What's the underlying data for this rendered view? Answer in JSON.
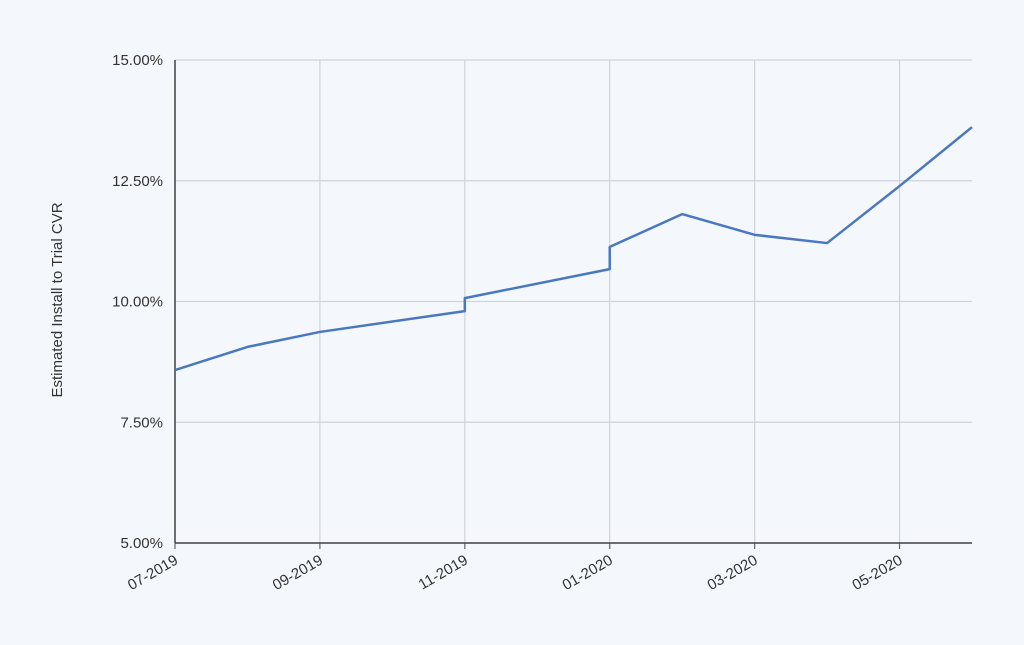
{
  "chart_data": {
    "type": "line",
    "y_label": "Estimated Install to Trial CVR",
    "x": [
      "07-2019",
      "08-2019",
      "09-2019",
      "11-2019",
      "11-2019",
      "01-2020",
      "01-2020",
      "02-2020",
      "03-2020",
      "04-2020",
      "05-2020",
      "06-2020"
    ],
    "values": [
      8.58,
      9.06,
      9.37,
      9.8,
      10.07,
      10.67,
      11.13,
      11.81,
      11.38,
      11.21,
      12.39,
      13.61
    ],
    "color": "#4a78c0",
    "xlim": [
      "07-2019",
      "06-2020"
    ],
    "xticks": [
      "07-2019",
      "09-2019",
      "11-2019",
      "01-2020",
      "03-2020",
      "05-2020"
    ],
    "ylim": [
      5,
      15
    ],
    "yticks": [
      {
        "value": 5,
        "label": "5.00%"
      },
      {
        "value": 7.5,
        "label": "7.50%"
      },
      {
        "value": 10,
        "label": "10.00%"
      },
      {
        "value": 12.5,
        "label": "12.50%"
      },
      {
        "value": 15,
        "label": "15.00%"
      }
    ],
    "grid": true
  }
}
